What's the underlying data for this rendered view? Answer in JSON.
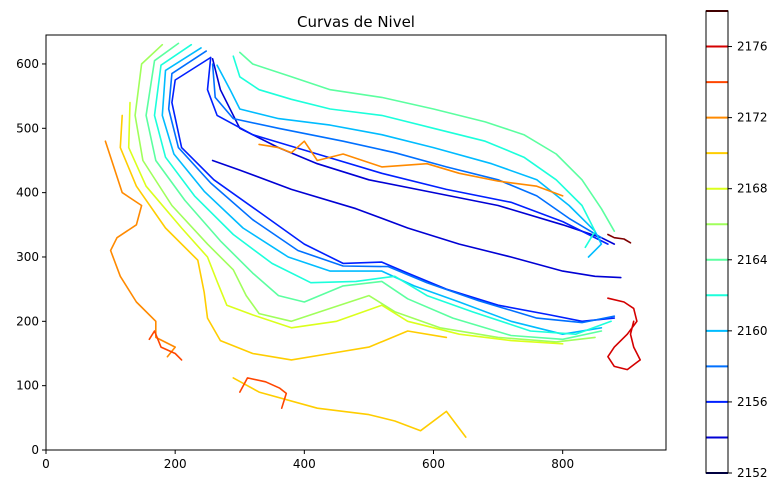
{
  "chart_data": {
    "type": "contour",
    "title": "Curvas de Nivel",
    "xlabel": "",
    "ylabel": "",
    "xlim": [
      0,
      960
    ],
    "ylim": [
      0,
      645
    ],
    "x_ticks": [
      0,
      200,
      400,
      600,
      800
    ],
    "y_ticks": [
      0,
      100,
      200,
      300,
      400,
      500,
      600
    ],
    "grid": false,
    "colorbar": {
      "range": [
        2152,
        2178
      ],
      "tick_labels": [
        2152,
        2156,
        2160,
        2164,
        2168,
        2172,
        2176
      ],
      "levels": [
        {
          "value": 2152,
          "color": "#00007f"
        },
        {
          "value": 2154,
          "color": "#0000d4"
        },
        {
          "value": 2156,
          "color": "#0020ff"
        },
        {
          "value": 2158,
          "color": "#0070ff"
        },
        {
          "value": 2160,
          "color": "#00bcff"
        },
        {
          "value": 2162,
          "color": "#1cffdb"
        },
        {
          "value": 2164,
          "color": "#5bffa0"
        },
        {
          "value": 2166,
          "color": "#a0ff5b"
        },
        {
          "value": 2168,
          "color": "#dbff1c"
        },
        {
          "value": 2170,
          "color": "#ffcd00"
        },
        {
          "value": 2172,
          "color": "#ff8a00"
        },
        {
          "value": 2174,
          "color": "#ff4600"
        },
        {
          "value": 2176,
          "color": "#d40000"
        },
        {
          "value": 2178,
          "color": "#7f0000"
        }
      ]
    },
    "contours": [
      {
        "level": 2154,
        "points": [
          [
            258,
            608
          ],
          [
            270,
            560
          ],
          [
            300,
            500
          ],
          [
            360,
            470
          ],
          [
            420,
            445
          ],
          [
            500,
            420
          ],
          [
            600,
            400
          ],
          [
            700,
            380
          ],
          [
            800,
            350
          ],
          [
            860,
            330
          ],
          [
            880,
            320
          ]
        ]
      },
      {
        "level": 2154,
        "points": [
          [
            258,
            450
          ],
          [
            300,
            435
          ],
          [
            380,
            405
          ],
          [
            480,
            375
          ],
          [
            560,
            345
          ],
          [
            640,
            320
          ],
          [
            720,
            300
          ],
          [
            800,
            278
          ],
          [
            850,
            270
          ],
          [
            890,
            268
          ]
        ]
      },
      {
        "level": 2156,
        "points": [
          [
            255,
            610
          ],
          [
            200,
            575
          ],
          [
            195,
            540
          ],
          [
            210,
            470
          ],
          [
            260,
            420
          ],
          [
            330,
            370
          ],
          [
            400,
            320
          ],
          [
            460,
            290
          ],
          [
            520,
            292
          ],
          [
            560,
            275
          ],
          [
            620,
            250
          ],
          [
            700,
            225
          ],
          [
            780,
            210
          ],
          [
            830,
            200
          ],
          [
            880,
            205
          ]
        ]
      },
      {
        "level": 2156,
        "points": [
          [
            255,
            610
          ],
          [
            250,
            560
          ],
          [
            265,
            520
          ],
          [
            320,
            490
          ],
          [
            420,
            460
          ],
          [
            520,
            430
          ],
          [
            620,
            405
          ],
          [
            720,
            385
          ],
          [
            800,
            355
          ],
          [
            870,
            320
          ]
        ]
      },
      {
        "level": 2158,
        "points": [
          [
            248,
            620
          ],
          [
            195,
            585
          ],
          [
            190,
            530
          ],
          [
            205,
            470
          ],
          [
            255,
            415
          ],
          [
            320,
            358
          ],
          [
            390,
            310
          ],
          [
            460,
            286
          ],
          [
            530,
            285
          ],
          [
            590,
            260
          ],
          [
            670,
            232
          ],
          [
            760,
            205
          ],
          [
            830,
            198
          ],
          [
            880,
            208
          ]
        ]
      },
      {
        "level": 2158,
        "points": [
          [
            258,
            600
          ],
          [
            262,
            548
          ],
          [
            290,
            515
          ],
          [
            360,
            500
          ],
          [
            460,
            480
          ],
          [
            540,
            462
          ],
          [
            620,
            440
          ],
          [
            700,
            420
          ],
          [
            760,
            395
          ],
          [
            810,
            360
          ],
          [
            860,
            330
          ]
        ]
      },
      {
        "level": 2160,
        "points": [
          [
            240,
            625
          ],
          [
            185,
            590
          ],
          [
            180,
            520
          ],
          [
            198,
            460
          ],
          [
            245,
            402
          ],
          [
            305,
            345
          ],
          [
            375,
            300
          ],
          [
            440,
            278
          ],
          [
            520,
            278
          ],
          [
            570,
            255
          ],
          [
            640,
            230
          ],
          [
            720,
            200
          ],
          [
            800,
            180
          ],
          [
            860,
            190
          ]
        ]
      },
      {
        "level": 2160,
        "points": [
          [
            265,
            598
          ],
          [
            285,
            560
          ],
          [
            300,
            530
          ],
          [
            360,
            515
          ],
          [
            440,
            505
          ],
          [
            520,
            490
          ],
          [
            600,
            470
          ],
          [
            690,
            445
          ],
          [
            760,
            420
          ],
          [
            810,
            380
          ],
          [
            850,
            340
          ],
          [
            860,
            320
          ],
          [
            840,
            300
          ]
        ]
      },
      {
        "level": 2162,
        "points": [
          [
            225,
            630
          ],
          [
            178,
            598
          ],
          [
            168,
            520
          ],
          [
            185,
            455
          ],
          [
            230,
            395
          ],
          [
            290,
            335
          ],
          [
            350,
            290
          ],
          [
            410,
            260
          ],
          [
            480,
            262
          ],
          [
            540,
            270
          ],
          [
            590,
            240
          ],
          [
            660,
            215
          ],
          [
            750,
            185
          ],
          [
            820,
            180
          ],
          [
            875,
            200
          ]
        ]
      },
      {
        "level": 2162,
        "points": [
          [
            290,
            612
          ],
          [
            300,
            580
          ],
          [
            330,
            560
          ],
          [
            380,
            545
          ],
          [
            440,
            530
          ],
          [
            520,
            520
          ],
          [
            600,
            500
          ],
          [
            680,
            480
          ],
          [
            740,
            455
          ],
          [
            790,
            420
          ],
          [
            830,
            380
          ],
          [
            850,
            340
          ],
          [
            835,
            315
          ]
        ]
      },
      {
        "level": 2164,
        "points": [
          [
            205,
            632
          ],
          [
            168,
            605
          ],
          [
            155,
            520
          ],
          [
            170,
            450
          ],
          [
            215,
            388
          ],
          [
            270,
            325
          ],
          [
            320,
            275
          ],
          [
            360,
            240
          ],
          [
            400,
            230
          ],
          [
            460,
            255
          ],
          [
            520,
            262
          ],
          [
            560,
            235
          ],
          [
            630,
            205
          ],
          [
            720,
            178
          ],
          [
            800,
            172
          ],
          [
            860,
            185
          ]
        ]
      },
      {
        "level": 2164,
        "points": [
          [
            300,
            618
          ],
          [
            320,
            600
          ],
          [
            380,
            580
          ],
          [
            440,
            560
          ],
          [
            520,
            548
          ],
          [
            600,
            530
          ],
          [
            680,
            510
          ],
          [
            740,
            490
          ],
          [
            790,
            460
          ],
          [
            830,
            420
          ],
          [
            860,
            375
          ],
          [
            880,
            340
          ]
        ]
      },
      {
        "level": 2166,
        "points": [
          [
            180,
            630
          ],
          [
            148,
            600
          ],
          [
            138,
            520
          ],
          [
            150,
            450
          ],
          [
            195,
            380
          ],
          [
            250,
            320
          ],
          [
            290,
            280
          ],
          [
            310,
            240
          ],
          [
            330,
            212
          ],
          [
            380,
            200
          ],
          [
            440,
            220
          ],
          [
            500,
            240
          ],
          [
            540,
            215
          ],
          [
            610,
            190
          ],
          [
            700,
            175
          ],
          [
            790,
            168
          ],
          [
            850,
            175
          ]
        ]
      },
      {
        "level": 2168,
        "points": [
          [
            130,
            540
          ],
          [
            128,
            470
          ],
          [
            155,
            410
          ],
          [
            210,
            345
          ],
          [
            250,
            300
          ],
          [
            265,
            262
          ],
          [
            280,
            225
          ],
          [
            320,
            210
          ],
          [
            380,
            190
          ],
          [
            450,
            200
          ],
          [
            520,
            225
          ],
          [
            560,
            200
          ],
          [
            640,
            180
          ],
          [
            720,
            170
          ],
          [
            800,
            165
          ]
        ]
      },
      {
        "level": 2170,
        "points": [
          [
            118,
            520
          ],
          [
            115,
            470
          ],
          [
            140,
            410
          ],
          [
            185,
            345
          ],
          [
            235,
            295
          ],
          [
            245,
            245
          ],
          [
            250,
            205
          ],
          [
            270,
            170
          ],
          [
            320,
            150
          ],
          [
            380,
            140
          ],
          [
            440,
            150
          ],
          [
            500,
            160
          ],
          [
            560,
            185
          ],
          [
            620,
            175
          ]
        ]
      },
      {
        "level": 2170,
        "points": [
          [
            290,
            112
          ],
          [
            330,
            90
          ],
          [
            420,
            65
          ],
          [
            500,
            55
          ],
          [
            540,
            45
          ],
          [
            580,
            30
          ],
          [
            620,
            60
          ],
          [
            650,
            20
          ]
        ]
      },
      {
        "level": 2172,
        "points": [
          [
            92,
            480
          ],
          [
            105,
            440
          ],
          [
            118,
            400
          ],
          [
            148,
            380
          ],
          [
            140,
            350
          ],
          [
            110,
            330
          ],
          [
            100,
            310
          ],
          [
            115,
            270
          ],
          [
            140,
            230
          ],
          [
            170,
            200
          ],
          [
            170,
            175
          ],
          [
            200,
            160
          ],
          [
            188,
            145
          ]
        ]
      },
      {
        "level": 2172,
        "points": [
          [
            330,
            475
          ],
          [
            360,
            470
          ],
          [
            380,
            462
          ],
          [
            400,
            480
          ],
          [
            420,
            450
          ],
          [
            460,
            460
          ],
          [
            520,
            440
          ],
          [
            590,
            445
          ],
          [
            640,
            430
          ],
          [
            700,
            418
          ],
          [
            760,
            410
          ],
          [
            800,
            395
          ]
        ]
      },
      {
        "level": 2174,
        "points": [
          [
            300,
            90
          ],
          [
            312,
            112
          ],
          [
            340,
            106
          ],
          [
            362,
            96
          ],
          [
            372,
            88
          ],
          [
            365,
            65
          ]
        ]
      },
      {
        "level": 2174,
        "points": [
          [
            160,
            172
          ],
          [
            168,
            185
          ],
          [
            178,
            160
          ],
          [
            200,
            150
          ],
          [
            210,
            140
          ]
        ]
      },
      {
        "level": 2176,
        "points": [
          [
            870,
            236
          ],
          [
            895,
            230
          ],
          [
            910,
            220
          ],
          [
            915,
            200
          ],
          [
            900,
            180
          ],
          [
            880,
            160
          ],
          [
            870,
            145
          ],
          [
            880,
            130
          ],
          [
            900,
            125
          ],
          [
            920,
            140
          ],
          [
            910,
            160
          ],
          [
            905,
            180
          ],
          [
            910,
            200
          ]
        ]
      },
      {
        "level": 2178,
        "points": [
          [
            870,
            335
          ],
          [
            880,
            330
          ],
          [
            895,
            328
          ],
          [
            905,
            322
          ]
        ]
      }
    ]
  }
}
